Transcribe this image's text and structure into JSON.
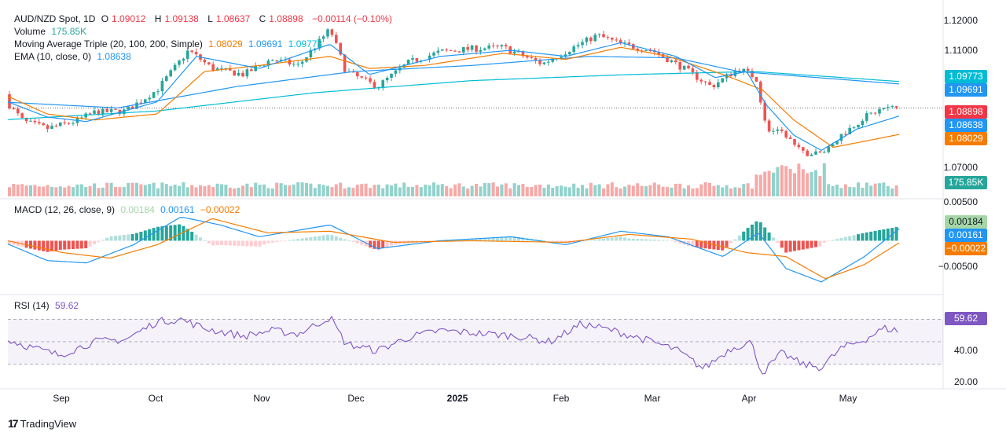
{
  "header": {
    "symbol": "AUD/NZD Spot, 1D",
    "open_label": "O",
    "open": "1.09012",
    "high_label": "H",
    "high": "1.09138",
    "low_label": "L",
    "low": "1.08637",
    "close_label": "C",
    "close": "1.08898",
    "change": "−0.00114 (−0.10%)"
  },
  "legend": {
    "volume_label": "Volume",
    "volume_value": "175.85K",
    "ma_label": "Moving Average Triple (20, 100, 200, Simple)",
    "ma20": "1.08029",
    "ma100": "1.09691",
    "ma200": "1.09773",
    "ema_label": "EMA (10, close, 0)",
    "ema_value": "1.08638",
    "macd_label": "MACD (12, 26, close, 9)",
    "macd_hist": "0.00184",
    "macd_line": "0.00161",
    "macd_signal": "−0.00022",
    "rsi_label": "RSI (14)",
    "rsi_value": "59.62"
  },
  "price_axis": [
    "1.12000",
    "1.11000",
    "1.07000"
  ],
  "macd_axis": [
    "0.00500",
    "−0.00500"
  ],
  "rsi_axis": [
    "40.00",
    "20.00"
  ],
  "badges": {
    "ma200": "1.09773",
    "ma100": "1.09691",
    "close": "1.08898",
    "ema": "1.08638",
    "ma20": "1.08029",
    "volume": "175.85K",
    "macd_hist": "0.00184",
    "macd_line": "0.00161",
    "macd_signal": "−0.00022",
    "rsi": "59.62"
  },
  "x_labels": [
    {
      "text": "Sep",
      "pos": 78,
      "bold": false
    },
    {
      "text": "Oct",
      "pos": 198,
      "bold": false
    },
    {
      "text": "Nov",
      "pos": 333,
      "bold": false
    },
    {
      "text": "Dec",
      "pos": 453,
      "bold": false
    },
    {
      "text": "2025",
      "pos": 582,
      "bold": true
    },
    {
      "text": "Feb",
      "pos": 714,
      "bold": false
    },
    {
      "text": "Mar",
      "pos": 830,
      "bold": false
    },
    {
      "text": "Apr",
      "pos": 953,
      "bold": false
    },
    {
      "text": "May",
      "pos": 1079,
      "bold": false
    }
  ],
  "colors": {
    "up": "#26a69a",
    "down": "#ef5350",
    "ma20": "#f57c00",
    "ma100": "#2196f3",
    "ma200": "#00bcd4",
    "ema": "#2196f3",
    "rsi": "#7e57c2"
  },
  "brand": "TradingView",
  "chart_data": {
    "type": "line",
    "title": "AUD/NZD Spot, 1D",
    "x_range": [
      "2024-08",
      "2025-05"
    ],
    "y_range": [
      1.065,
      1.122
    ],
    "price_anchors": [
      [
        0,
        1.0935
      ],
      [
        30,
        1.0845
      ],
      [
        60,
        1.0822
      ],
      [
        95,
        1.0845
      ],
      [
        120,
        1.0875
      ],
      [
        160,
        1.088
      ],
      [
        200,
        1.095
      ],
      [
        240,
        1.108
      ],
      [
        270,
        1.102
      ],
      [
        310,
        1.1
      ],
      [
        345,
        1.105
      ],
      [
        380,
        1.103
      ],
      [
        420,
        1.115
      ],
      [
        440,
        1.101
      ],
      [
        480,
        1.096
      ],
      [
        520,
        1.104
      ],
      [
        560,
        1.1075
      ],
      [
        600,
        1.1085
      ],
      [
        640,
        1.109
      ],
      [
        690,
        1.1035
      ],
      [
        730,
        1.109
      ],
      [
        760,
        1.113
      ],
      [
        790,
        1.11
      ],
      [
        830,
        1.108
      ],
      [
        870,
        1.102
      ],
      [
        905,
        1.096
      ],
      [
        940,
        1.102
      ],
      [
        962,
        1.099
      ],
      [
        975,
        1.082
      ],
      [
        1000,
        1.08
      ],
      [
        1020,
        1.074
      ],
      [
        1045,
        1.074
      ],
      [
        1070,
        1.08
      ],
      [
        1100,
        1.086
      ],
      [
        1125,
        1.089
      ],
      [
        1145,
        1.089
      ]
    ],
    "ma20_anchors": [
      [
        0,
        1.094
      ],
      [
        60,
        1.087
      ],
      [
        120,
        1.085
      ],
      [
        200,
        1.087
      ],
      [
        260,
        1.101
      ],
      [
        330,
        1.103
      ],
      [
        420,
        1.106
      ],
      [
        470,
        1.102
      ],
      [
        540,
        1.103
      ],
      [
        640,
        1.107
      ],
      [
        720,
        1.105
      ],
      [
        790,
        1.109
      ],
      [
        850,
        1.106
      ],
      [
        920,
        1.1
      ],
      [
        970,
        1.095
      ],
      [
        1010,
        1.085
      ],
      [
        1060,
        1.076
      ],
      [
        1100,
        1.078
      ],
      [
        1145,
        1.0803
      ]
    ],
    "ma100_anchors": [
      [
        0,
        1.091
      ],
      [
        150,
        1.089
      ],
      [
        300,
        1.096
      ],
      [
        450,
        1.101
      ],
      [
        600,
        1.103
      ],
      [
        750,
        1.106
      ],
      [
        860,
        1.1055
      ],
      [
        940,
        1.101
      ],
      [
        1040,
        1.099
      ],
      [
        1145,
        1.0969
      ]
    ],
    "ma200_anchors": [
      [
        0,
        1.085
      ],
      [
        200,
        1.088
      ],
      [
        400,
        1.094
      ],
      [
        600,
        1.098
      ],
      [
        800,
        1.1
      ],
      [
        960,
        1.101
      ],
      [
        1145,
        1.0977
      ]
    ],
    "ema_anchors": [
      [
        0,
        1.092
      ],
      [
        60,
        1.086
      ],
      [
        110,
        1.0845
      ],
      [
        200,
        1.091
      ],
      [
        250,
        1.106
      ],
      [
        330,
        1.102
      ],
      [
        420,
        1.11
      ],
      [
        470,
        1.1
      ],
      [
        560,
        1.106
      ],
      [
        650,
        1.108
      ],
      [
        720,
        1.106
      ],
      [
        790,
        1.1105
      ],
      [
        860,
        1.106
      ],
      [
        910,
        1.099
      ],
      [
        950,
        1.101
      ],
      [
        975,
        1.09
      ],
      [
        1010,
        1.08
      ],
      [
        1045,
        1.075
      ],
      [
        1090,
        1.082
      ],
      [
        1145,
        1.0864
      ]
    ],
    "macd_anchors": [
      [
        0,
        0.0
      ],
      [
        60,
        -0.0025
      ],
      [
        110,
        -0.0028
      ],
      [
        170,
        -0.0005
      ],
      [
        230,
        0.003
      ],
      [
        280,
        0.002
      ],
      [
        330,
        0.0005
      ],
      [
        420,
        0.002
      ],
      [
        480,
        -0.001
      ],
      [
        560,
        0.0
      ],
      [
        650,
        0.0005
      ],
      [
        720,
        -0.0005
      ],
      [
        790,
        0.0012
      ],
      [
        850,
        0.0005
      ],
      [
        920,
        -0.002
      ],
      [
        965,
        0.001
      ],
      [
        1000,
        -0.0035
      ],
      [
        1045,
        -0.0052
      ],
      [
        1100,
        -0.002
      ],
      [
        1145,
        0.0016
      ]
    ],
    "signal_anchors": [
      [
        0,
        0.0002
      ],
      [
        80,
        -0.0015
      ],
      [
        140,
        -0.0022
      ],
      [
        200,
        -0.0005
      ],
      [
        270,
        0.0028
      ],
      [
        340,
        0.001
      ],
      [
        420,
        0.0012
      ],
      [
        500,
        -0.0002
      ],
      [
        600,
        0.0
      ],
      [
        720,
        -0.0002
      ],
      [
        800,
        0.0008
      ],
      [
        880,
        0.0002
      ],
      [
        950,
        -0.0015
      ],
      [
        1000,
        -0.002
      ],
      [
        1050,
        -0.0048
      ],
      [
        1100,
        -0.003
      ],
      [
        1145,
        -0.0002
      ]
    ],
    "rsi_anchors": [
      [
        0,
        54
      ],
      [
        40,
        45
      ],
      [
        75,
        38
      ],
      [
        120,
        50
      ],
      [
        160,
        52
      ],
      [
        200,
        68
      ],
      [
        230,
        70
      ],
      [
        260,
        62
      ],
      [
        310,
        55
      ],
      [
        345,
        60
      ],
      [
        380,
        57
      ],
      [
        420,
        72
      ],
      [
        440,
        48
      ],
      [
        480,
        42
      ],
      [
        520,
        54
      ],
      [
        560,
        60
      ],
      [
        600,
        58
      ],
      [
        660,
        55
      ],
      [
        700,
        50
      ],
      [
        740,
        66
      ],
      [
        780,
        60
      ],
      [
        820,
        52
      ],
      [
        860,
        43
      ],
      [
        895,
        26
      ],
      [
        930,
        44
      ],
      [
        955,
        50
      ],
      [
        970,
        22
      ],
      [
        995,
        40
      ],
      [
        1020,
        30
      ],
      [
        1045,
        27
      ],
      [
        1070,
        44
      ],
      [
        1100,
        52
      ],
      [
        1125,
        62
      ],
      [
        1145,
        59.6
      ]
    ],
    "rsi_range": [
      10,
      90
    ],
    "macd_range": [
      -0.0065,
      0.005
    ]
  }
}
